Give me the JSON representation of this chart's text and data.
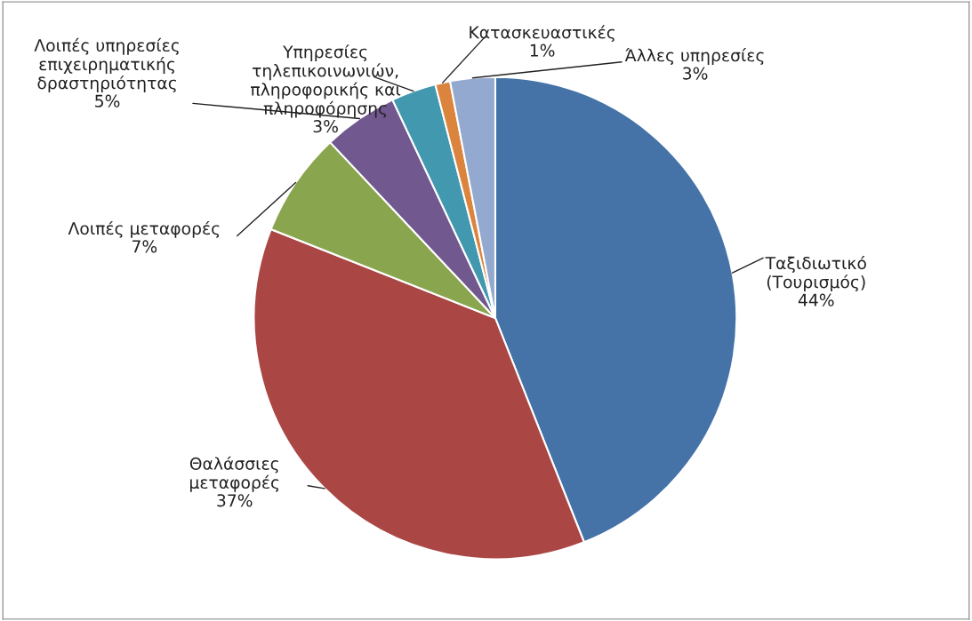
{
  "chart_data": {
    "type": "pie",
    "categories": [
      "Ταξιδιωτικό\n(Τουρισμός)",
      "Θαλάσσιες\nμεταφορές",
      "Λοιπές μεταφορές",
      "Λοιπές υπηρεσίες\nεπιχειρηματικής\nδραστηριότητας",
      "Υπηρεσίες\nτηλεπικοινωνιών,\nπληροφορικής και\nπληροφόρησης",
      "Κατασκευαστικές",
      "Άλλες υπηρεσίες"
    ],
    "values": [
      44,
      37,
      7,
      5,
      3,
      1,
      3
    ],
    "value_labels": [
      "44%",
      "37%",
      "7%",
      "5%",
      "3%",
      "1%",
      "3%"
    ],
    "colors": [
      "#4573a7",
      "#aa4644",
      "#89a54e",
      "#71588f",
      "#4298af",
      "#db843d",
      "#93a9cf"
    ]
  }
}
